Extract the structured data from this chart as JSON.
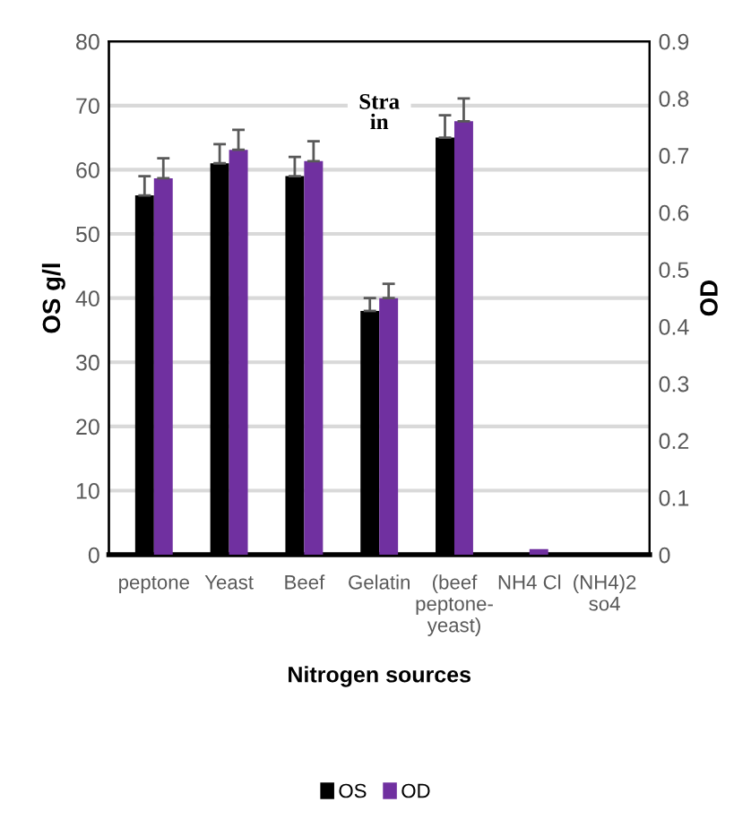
{
  "chart_data": {
    "type": "bar",
    "title": "Stra\nin",
    "xlabel": "Nitrogen sources",
    "ylabel": "OS g/l",
    "y2label": "OD",
    "categories": [
      "peptone",
      "Yeast",
      "Beef",
      "Gelatin",
      "(beef\npeptone-\nyeast)",
      "NH4 Cl",
      "(NH4)2\nso4"
    ],
    "series": [
      {
        "name": "OS",
        "color": "#000000",
        "values": [
          56,
          61,
          59,
          38,
          65,
          0,
          0
        ],
        "errors": [
          3,
          3,
          3,
          2,
          3.5,
          null,
          null
        ]
      },
      {
        "name": "OD",
        "color": "#7030a0",
        "axis": "y2",
        "values": [
          0.66,
          0.71,
          0.69,
          0.45,
          0.76,
          0.01,
          0
        ],
        "errors": [
          0.035,
          0.035,
          0.035,
          0.025,
          0.04,
          null,
          null
        ]
      }
    ],
    "ylim": [
      0,
      80
    ],
    "yticks": [
      0,
      10,
      20,
      30,
      40,
      50,
      60,
      70,
      80
    ],
    "y2lim": [
      0,
      0.9
    ],
    "y2ticks": [
      0,
      0.1,
      0.2,
      0.3,
      0.4,
      0.5,
      0.6,
      0.7,
      0.8,
      0.9
    ],
    "grid": "y",
    "legend": "bottom"
  }
}
